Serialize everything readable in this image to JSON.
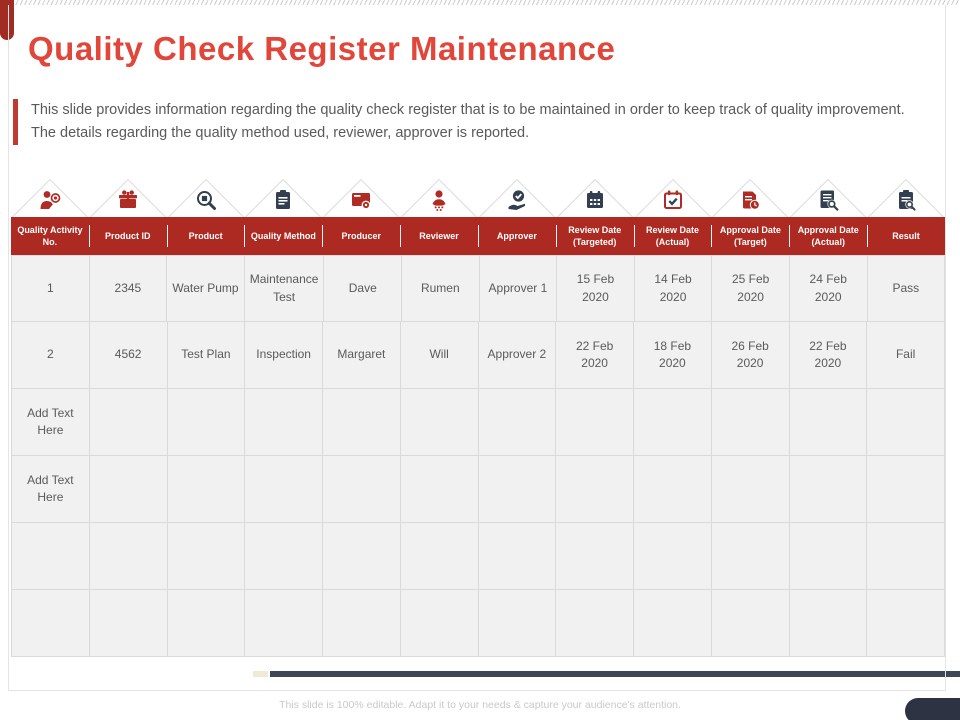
{
  "slide": {
    "title": "Quality Check Register Maintenance",
    "description": "This slide provides information regarding the quality check register that is to be maintained in order to keep track of quality improvement. The details regarding the quality method used, reviewer, approver is reported.",
    "footer": "This slide is 100% editable. Adapt it to your needs & capture your audience's attention."
  },
  "colors": {
    "title_red": "#E0463A",
    "header_red": "#AC2A21",
    "corner_pill_red": "#A12C24",
    "desc_bar_red": "#BE3B31",
    "icon_red": "#B02B23",
    "icon_dark": "#333F50",
    "divider_bar_dark": "#3F4656",
    "divider_accent_yellow": "#EFEAD2",
    "bottom_pill_dark": "#2D3343",
    "cell_bg": "#F1F1F2",
    "cell_border": "#DADADA",
    "cell_text": "#5A5A5A"
  },
  "table": {
    "columns": [
      {
        "label": "Quality Activity No.",
        "icon": "person-target-icon",
        "tone": "red"
      },
      {
        "label": "Product ID",
        "icon": "gift-icon",
        "tone": "red"
      },
      {
        "label": "Product",
        "icon": "search-product-icon",
        "tone": "dark"
      },
      {
        "label": "Quality Method",
        "icon": "clipboard-icon",
        "tone": "dark"
      },
      {
        "label": "Producer",
        "icon": "card-gear-icon",
        "tone": "red"
      },
      {
        "label": "Reviewer",
        "icon": "person-icon",
        "tone": "red"
      },
      {
        "label": "Approver",
        "icon": "hand-check-icon",
        "tone": "dark"
      },
      {
        "label": "Review Date (Targeted)",
        "icon": "calendar-icon",
        "tone": "dark"
      },
      {
        "label": "Review Date (Actual)",
        "icon": "calendar-check-icon",
        "tone": "red"
      },
      {
        "label": "Approval Date (Target)",
        "icon": "doc-clock-icon",
        "tone": "red"
      },
      {
        "label": "Approval Date (Actual)",
        "icon": "doc-search-icon",
        "tone": "dark"
      },
      {
        "label": "Result",
        "icon": "clipboard-search-icon",
        "tone": "dark"
      }
    ],
    "rows": [
      [
        "1",
        "2345",
        "Water Pump",
        "Maintenance Test",
        "Dave",
        "Rumen",
        "Approver 1",
        "15 Feb 2020",
        "14 Feb 2020",
        "25 Feb 2020",
        "24 Feb 2020",
        "Pass"
      ],
      [
        "2",
        "4562",
        "Test Plan",
        "Inspection",
        "Margaret",
        "Will",
        "Approver 2",
        "22 Feb 2020",
        "18 Feb 2020",
        "26 Feb 2020",
        "22 Feb 2020",
        "Fail"
      ],
      [
        "Add Text Here",
        "",
        "",
        "",
        "",
        "",
        "",
        "",
        "",
        "",
        "",
        ""
      ],
      [
        "Add Text Here",
        "",
        "",
        "",
        "",
        "",
        "",
        "",
        "",
        "",
        "",
        ""
      ],
      [
        "",
        "",
        "",
        "",
        "",
        "",
        "",
        "",
        "",
        "",
        "",
        ""
      ],
      [
        "",
        "",
        "",
        "",
        "",
        "",
        "",
        "",
        "",
        "",
        "",
        ""
      ]
    ],
    "placeholder_text": "Add Text Here"
  }
}
